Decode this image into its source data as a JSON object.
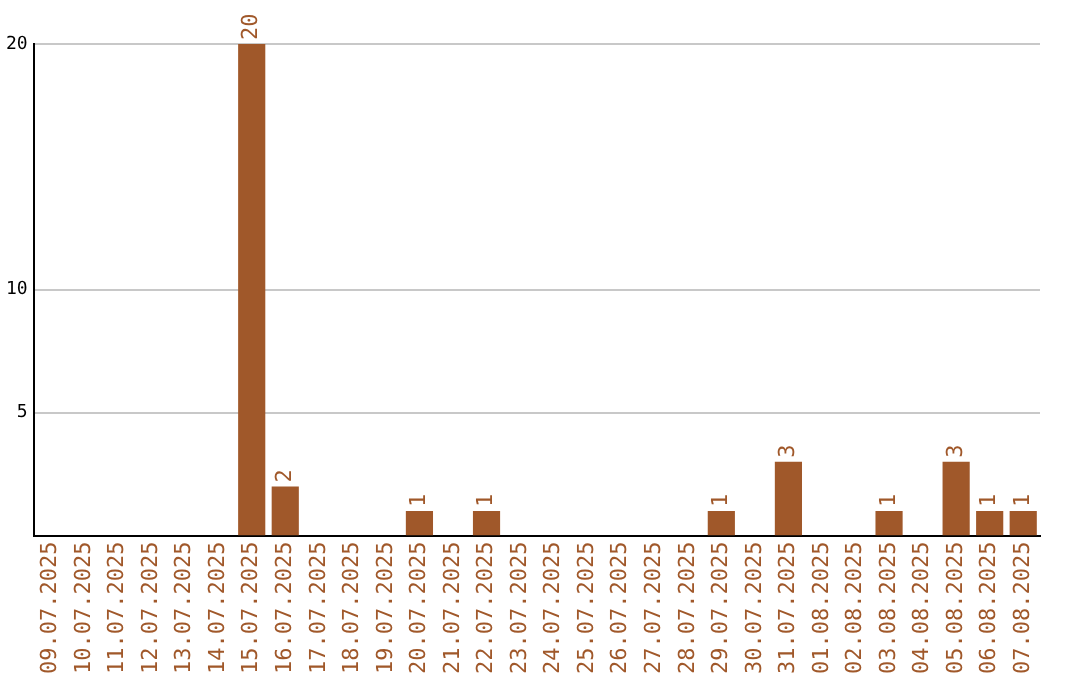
{
  "chart_data": {
    "type": "bar",
    "categories": [
      "09.07.2025",
      "10.07.2025",
      "11.07.2025",
      "12.07.2025",
      "13.07.2025",
      "14.07.2025",
      "15.07.2025",
      "16.07.2025",
      "17.07.2025",
      "18.07.2025",
      "19.07.2025",
      "20.07.2025",
      "21.07.2025",
      "22.07.2025",
      "23.07.2025",
      "24.07.2025",
      "25.07.2025",
      "26.07.2025",
      "27.07.2025",
      "28.07.2025",
      "29.07.2025",
      "30.07.2025",
      "31.07.2025",
      "01.08.2025",
      "02.08.2025",
      "03.08.2025",
      "04.08.2025",
      "05.08.2025",
      "06.08.2025",
      "07.08.2025"
    ],
    "values": [
      0,
      0,
      0,
      0,
      0,
      0,
      20,
      2,
      0,
      0,
      0,
      1,
      0,
      1,
      0,
      0,
      0,
      0,
      0,
      0,
      1,
      0,
      3,
      0,
      0,
      1,
      0,
      3,
      1,
      1
    ],
    "value_labels": [
      null,
      null,
      null,
      null,
      null,
      null,
      "20",
      "2",
      null,
      null,
      null,
      "1",
      null,
      "1",
      null,
      null,
      null,
      null,
      null,
      null,
      "1",
      null,
      "3",
      null,
      null,
      "1",
      null,
      "3",
      "1",
      "1"
    ],
    "color": "#a0582a",
    "ylim": [
      0,
      20
    ],
    "yticks": [
      5,
      10,
      20
    ],
    "grid": "y",
    "legend": false
  }
}
